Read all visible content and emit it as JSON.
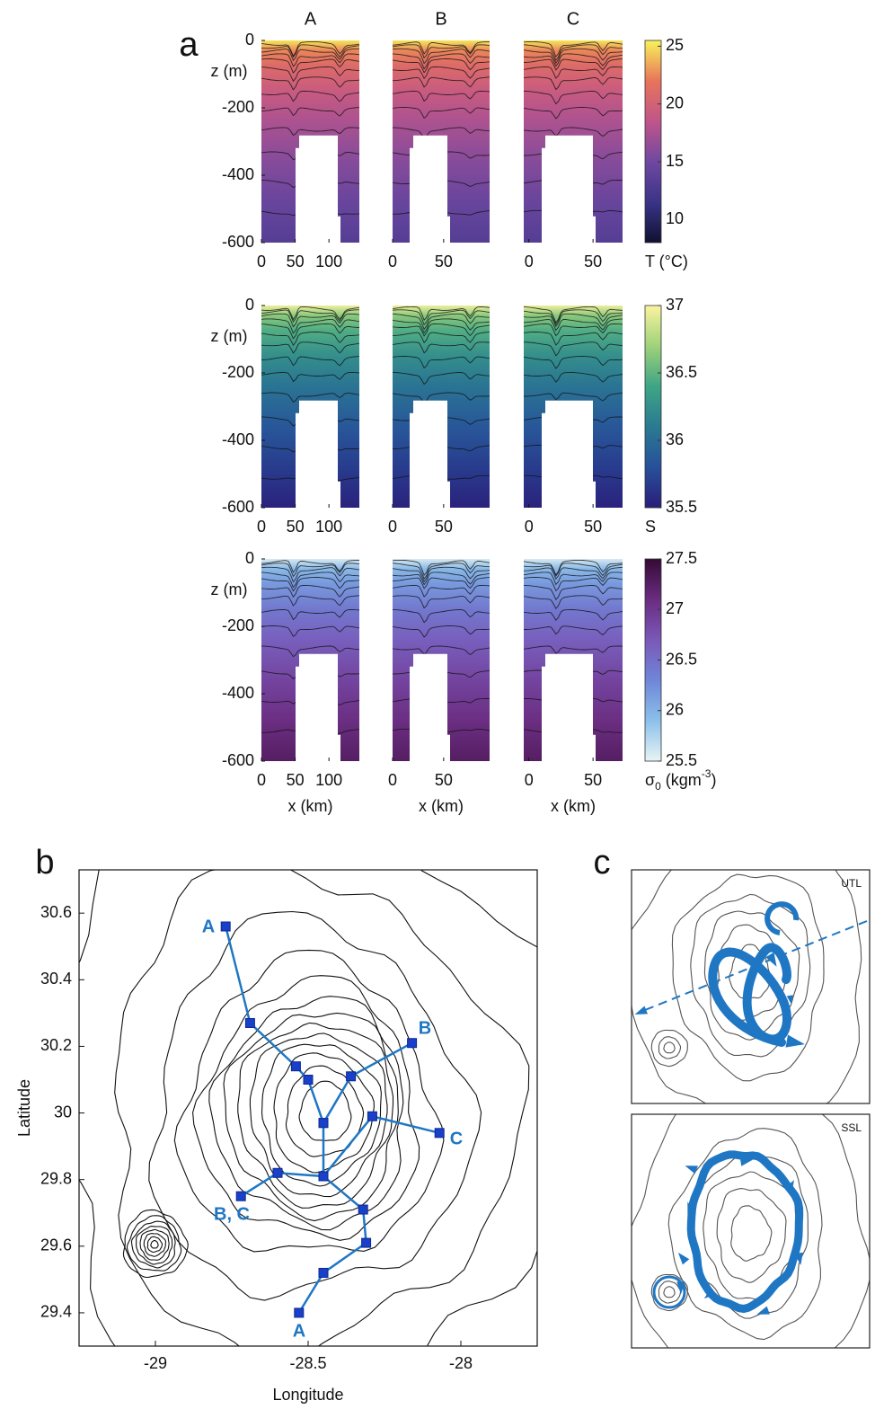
{
  "panel_a": {
    "label": "a",
    "ylabel": "z (m)",
    "xlabel": "x (km)",
    "ylim": [
      -600,
      0
    ],
    "yticks": [
      -600,
      -400,
      -200,
      0
    ],
    "columns": [
      {
        "title": "A",
        "xlim": [
          0,
          145
        ],
        "xticks": [
          0,
          50,
          100
        ]
      },
      {
        "title": "B",
        "xlim": [
          0,
          95
        ],
        "xticks": [
          0,
          50
        ]
      },
      {
        "title": "C",
        "xlim": [
          -4,
          73
        ],
        "xticks": [
          0,
          50
        ]
      }
    ],
    "rows": [
      {
        "variable": [
          "T (°C)"
        ],
        "clim": [
          8,
          25.5
        ],
        "cticks": [
          10,
          15,
          20,
          25
        ],
        "colors": [
          "#101030",
          "#3a3488",
          "#7048a0",
          "#c0558a",
          "#e8745a",
          "#f7f35a"
        ]
      },
      {
        "variable": [
          "S"
        ],
        "clim": [
          35.5,
          37
        ],
        "cticks": [
          35.5,
          36,
          36.5,
          37
        ],
        "colors": [
          "#2a1d7a",
          "#27509a",
          "#2a7a92",
          "#3ea585",
          "#9fd27a",
          "#fbf3a0"
        ]
      },
      {
        "variable": [
          "σ",
          "0",
          " (kgm",
          "-3",
          ")"
        ],
        "clim": [
          25.5,
          27.5
        ],
        "cticks": [
          25.5,
          26,
          26.5,
          27,
          27.5
        ],
        "colors": [
          "#e8f4f4",
          "#8cc0ea",
          "#6f86d8",
          "#7a58b8",
          "#6a2c80",
          "#350a35"
        ]
      }
    ]
  },
  "panel_b": {
    "label": "b",
    "xlabel": "Longitude",
    "ylabel": "Latitude",
    "xlim": [
      -29.25,
      -27.75
    ],
    "xticks": [
      -29,
      -28.5,
      -28
    ],
    "ylim": [
      29.3,
      30.73
    ],
    "yticks": [
      29.4,
      29.6,
      29.8,
      30,
      30.2,
      30.4,
      30.6
    ],
    "track": {
      "color": "#1f77c4",
      "lon": [
        -28.77,
        -28.69,
        -28.54,
        -28.5,
        -28.45,
        -28.45,
        -28.32,
        -28.31,
        -28.45,
        -28.53,
        null,
        -28.16,
        -28.36,
        -28.45,
        -28.45,
        -28.6,
        -28.72,
        null,
        -28.07,
        -28.29,
        -28.45
      ],
      "lat": [
        30.56,
        30.27,
        30.14,
        30.1,
        29.97,
        29.81,
        29.71,
        29.61,
        29.52,
        29.4,
        null,
        30.21,
        30.11,
        29.97,
        29.81,
        29.82,
        29.75,
        null,
        29.94,
        29.99,
        29.81
      ]
    },
    "station_labels": [
      "A",
      "B",
      "C",
      "B, C",
      "A"
    ]
  },
  "panel_c": {
    "label": "c",
    "panels": [
      "UTL",
      "SSL"
    ]
  }
}
